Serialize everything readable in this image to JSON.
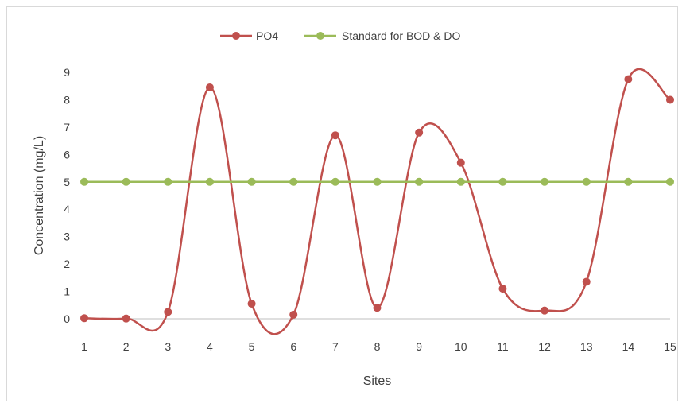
{
  "chart_data": {
    "type": "line",
    "title": "",
    "xlabel": "Sites",
    "ylabel": "Concentration (mg/L)",
    "x": [
      1,
      2,
      3,
      4,
      5,
      6,
      7,
      8,
      9,
      10,
      11,
      12,
      13,
      14,
      15
    ],
    "xlim": [
      1,
      15
    ],
    "ylim": [
      0,
      9
    ],
    "yticks": [
      0,
      1,
      2,
      3,
      4,
      5,
      6,
      7,
      8,
      9
    ],
    "grid": false,
    "legend_position": "top",
    "smooth": true,
    "series": [
      {
        "name": "PO4",
        "color": "#c0504d",
        "values": [
          0.02,
          0.01,
          0.25,
          8.45,
          0.55,
          0.15,
          6.7,
          0.4,
          6.8,
          5.7,
          1.1,
          0.3,
          1.35,
          8.75,
          8.0
        ]
      },
      {
        "name": "Standard for BOD & DO",
        "color": "#9bbb59",
        "values": [
          5,
          5,
          5,
          5,
          5,
          5,
          5,
          5,
          5,
          5,
          5,
          5,
          5,
          5,
          5
        ]
      }
    ]
  }
}
